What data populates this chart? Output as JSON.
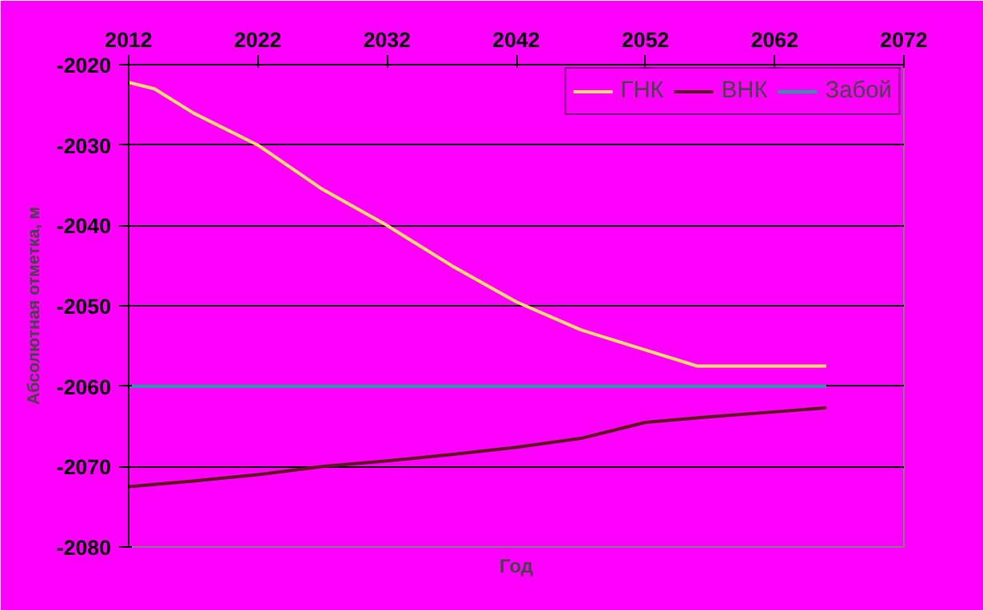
{
  "chart_data": {
    "type": "line",
    "xlabel": "Год",
    "ylabel": "Абсолютная отметка, м",
    "xlim": [
      2012,
      2072
    ],
    "xticks": [
      2012,
      2022,
      2032,
      2042,
      2052,
      2062,
      2072
    ],
    "ylim": [
      -2080,
      -2020
    ],
    "yticks": [
      -2080,
      -2070,
      -2060,
      -2050,
      -2040,
      -2030,
      -2020
    ],
    "grid": "y",
    "legend": "top right",
    "series": [
      {
        "name": "ГНК",
        "color": "#f0e068",
        "x": [
          2012,
          2014,
          2017,
          2022,
          2027,
          2032,
          2037,
          2042,
          2047,
          2052,
          2056,
          2061,
          2066
        ],
        "values": [
          -2022.2,
          -2023,
          -2026,
          -2030,
          -2035.5,
          -2040,
          -2045,
          -2049.5,
          -2053,
          -2055.5,
          -2057.5,
          -2057.5,
          -2057.5
        ]
      },
      {
        "name": "ВНК",
        "color": "#5a1a1a",
        "x": [
          2012,
          2017,
          2022,
          2027,
          2032,
          2037,
          2042,
          2047,
          2052,
          2057,
          2062,
          2066
        ],
        "values": [
          -2072.5,
          -2071.8,
          -2071,
          -2070,
          -2069.3,
          -2068.5,
          -2067.6,
          -2066.5,
          -2064.5,
          -2063.8,
          -2063.2,
          -2062.7
        ]
      },
      {
        "name": "Забой",
        "color": "#20a0a0",
        "x": [
          2012,
          2066
        ],
        "values": [
          -2060,
          -2060
        ]
      }
    ]
  }
}
